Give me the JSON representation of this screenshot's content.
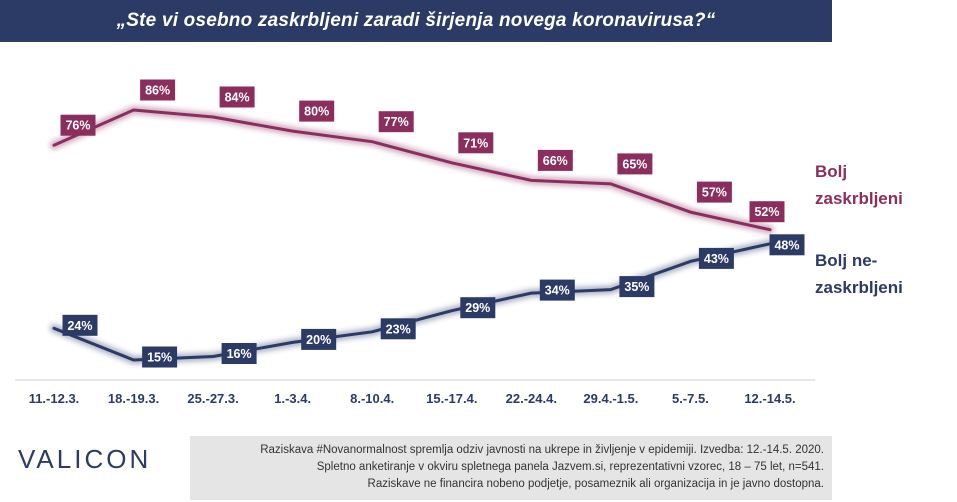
{
  "title": "„Ste vi osebno zaskrbljeni zaradi širjenja novega koronavirusa?“",
  "legend": {
    "concerned_line1": "Bolj",
    "concerned_line2": "zaskrbljeni",
    "not_concerned_line1": "Bolj ne-",
    "not_concerned_line2": "zaskrbljeni"
  },
  "logo": "VALICON",
  "footer": {
    "line1": "Raziskava #Novanormalnost spremlja odziv javnosti na ukrepe in življenje v epidemiji. Izvedba: 12.-14.5. 2020.",
    "line2": "Spletno anketiranje v okviru spletnega panela Jazvem.si, reprezentativni vzorec, 18 – 75 let, n=541.",
    "line3": "Raziskave ne financira nobeno podjetje, posameznik ali organizacija in je javno dostopna."
  },
  "colors": {
    "title_bg": "#2c3a66",
    "concerned": "#8b2e5e",
    "not_concerned": "#2c3a66",
    "axis_text": "#2c3a66"
  },
  "chart_data": {
    "type": "line",
    "categories": [
      "11.-12.3.",
      "18.-19.3.",
      "25.-27.3.",
      "1.-3.4.",
      "8.-10.4.",
      "15.-17.4.",
      "22.-24.4.",
      "29.4.-1.5.",
      "5.-7.5.",
      "12.-14.5."
    ],
    "series": [
      {
        "name": "Bolj zaskrbljeni",
        "values": [
          76,
          86,
          84,
          80,
          77,
          71,
          66,
          65,
          57,
          52
        ],
        "color": "#8b2e5e"
      },
      {
        "name": "Bolj ne-zaskrbljeni",
        "values": [
          24,
          15,
          16,
          20,
          23,
          29,
          34,
          35,
          43,
          48
        ],
        "color": "#2c3a66"
      }
    ],
    "ylim": [
      10,
      90
    ],
    "grid": false,
    "data_labels": true,
    "label_suffix": "%"
  }
}
